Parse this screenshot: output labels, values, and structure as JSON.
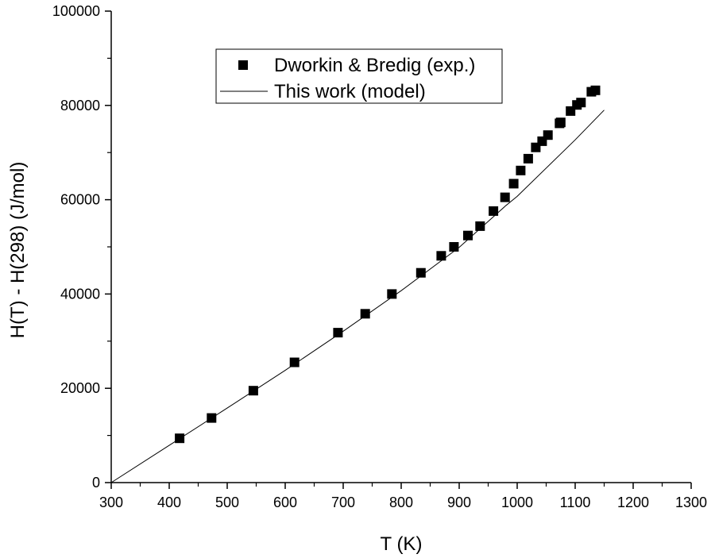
{
  "chart_data": {
    "type": "scatter",
    "title": "",
    "xlabel": "T (K)",
    "ylabel": "H(T) - H(298) (J/mol)",
    "xlim": [
      300,
      1300
    ],
    "ylim": [
      0,
      100000
    ],
    "x_ticks": [
      300,
      400,
      500,
      600,
      700,
      800,
      900,
      1000,
      1100,
      1200,
      1300
    ],
    "x_tick_labels": [
      "300",
      "400",
      "500",
      "600",
      "700",
      "800",
      "900",
      "1000",
      "1100",
      "1200",
      "1300"
    ],
    "y_ticks": [
      0,
      20000,
      40000,
      60000,
      80000,
      100000
    ],
    "y_tick_labels": [
      "0",
      "20000",
      "40000",
      "60000",
      "80000",
      "100000"
    ],
    "grid": false,
    "legend_position": "top-center",
    "series": [
      {
        "name": "Dworkin & Bredig (exp.)",
        "kind": "markers",
        "marker": "square",
        "color": "#000000",
        "points": [
          [
            418,
            9400
          ],
          [
            473,
            13700
          ],
          [
            545,
            19500
          ],
          [
            616,
            25500
          ],
          [
            691,
            31800
          ],
          [
            738,
            35800
          ],
          [
            784,
            40000
          ],
          [
            834,
            44500
          ],
          [
            869,
            48100
          ],
          [
            891,
            50000
          ],
          [
            915,
            52400
          ],
          [
            936,
            54400
          ],
          [
            959,
            57600
          ],
          [
            979,
            60500
          ],
          [
            994,
            63400
          ],
          [
            1006,
            66200
          ],
          [
            1019,
            68700
          ],
          [
            1032,
            71100
          ],
          [
            1043,
            72400
          ],
          [
            1053,
            73700
          ],
          [
            1073,
            76200
          ],
          [
            1075,
            76400
          ],
          [
            1092,
            78800
          ],
          [
            1103,
            80100
          ],
          [
            1110,
            80600
          ],
          [
            1128,
            82900
          ],
          [
            1135,
            83200
          ]
        ]
      },
      {
        "name": "This work (model)",
        "kind": "line",
        "color": "#000000",
        "points": [
          [
            300,
            0
          ],
          [
            400,
            7900
          ],
          [
            500,
            15800
          ],
          [
            600,
            23800
          ],
          [
            700,
            32100
          ],
          [
            800,
            40700
          ],
          [
            900,
            49900
          ],
          [
            980,
            58700
          ],
          [
            1000,
            60700
          ],
          [
            1100,
            72700
          ],
          [
            1150,
            79000
          ]
        ]
      }
    ]
  }
}
